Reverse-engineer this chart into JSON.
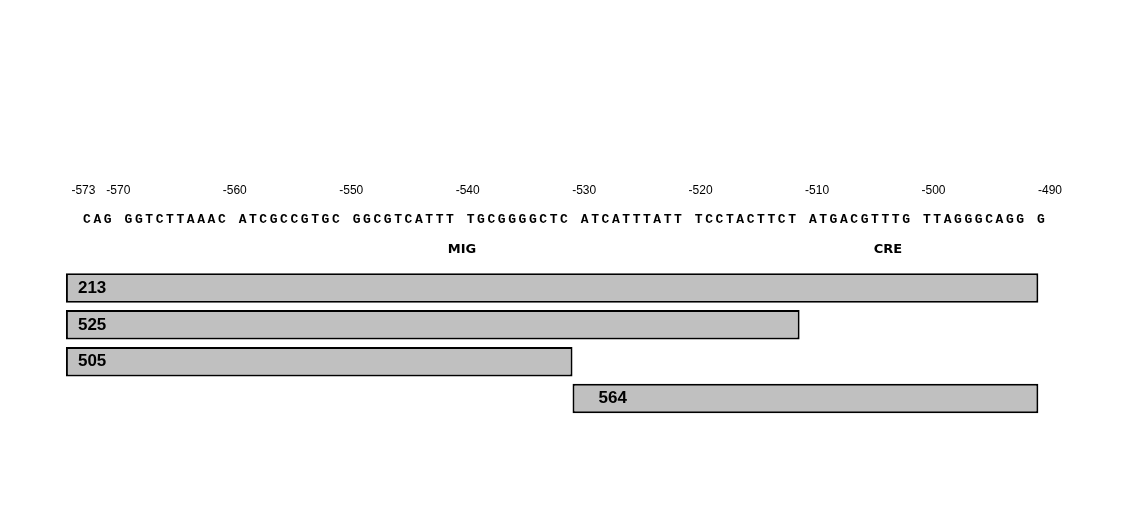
{
  "chart_data": {
    "type": "bar",
    "orientation": "horizontal",
    "tick_labels": "x",
    "grid": false,
    "legend": false,
    "categories": [
      "213",
      "525",
      "505",
      "564"
    ],
    "base": [
      -574.5,
      -574.5,
      -574.5,
      -531
    ],
    "values": [
      83.5,
      63,
      43.5,
      40
    ],
    "color": "#c0c0c0",
    "xlim": [
      -575,
      -490
    ],
    "xticks": [
      -573,
      -570,
      -560,
      -550,
      -540,
      -530,
      -520,
      -510,
      -500,
      -490
    ],
    "annotations": [
      "CAG GGTCTTAAAC ATCGCCGTGC GGCGTCATTT TGCGGGGCTC ATCATTTATT TCCTACTTCT ATGACGTTTG TTAGGGCAGG G",
      "MIG",
      "CRE"
    ]
  }
}
